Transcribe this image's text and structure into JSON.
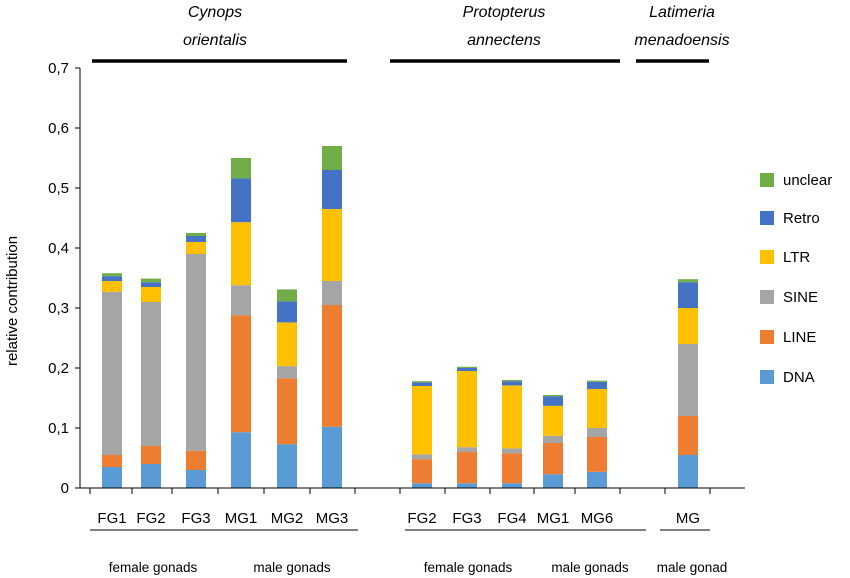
{
  "chart_data": {
    "type": "bar",
    "stacked": true,
    "ylabel": "relative contribution",
    "ylim": [
      0,
      0.7
    ],
    "yticks": [
      "0",
      "0,1",
      "0,2",
      "0,3",
      "0,4",
      "0,5",
      "0,6",
      "0,7"
    ],
    "grid": false,
    "legend_position": "right",
    "categories": [
      "FG1",
      "FG2",
      "FG3",
      "MG1",
      "MG2",
      "MG3",
      "FG2",
      "FG3",
      "FG4",
      "MG1",
      "MG6",
      "MG"
    ],
    "series": [
      {
        "name": "DNA",
        "color": "#5b9bd5",
        "values": [
          0.035,
          0.04,
          0.03,
          0.093,
          0.073,
          0.102,
          0.008,
          0.008,
          0.008,
          0.023,
          0.027,
          0.055
        ]
      },
      {
        "name": "LINE",
        "color": "#ed7d31",
        "values": [
          0.02,
          0.03,
          0.032,
          0.195,
          0.11,
          0.203,
          0.04,
          0.052,
          0.05,
          0.052,
          0.058,
          0.065
        ]
      },
      {
        "name": "SINE",
        "color": "#a5a5a5",
        "values": [
          0.272,
          0.24,
          0.328,
          0.05,
          0.02,
          0.04,
          0.008,
          0.008,
          0.008,
          0.012,
          0.015,
          0.12
        ]
      },
      {
        "name": "LTR",
        "color": "#ffc000",
        "values": [
          0.018,
          0.025,
          0.02,
          0.105,
          0.073,
          0.12,
          0.114,
          0.127,
          0.105,
          0.05,
          0.065,
          0.06
        ]
      },
      {
        "name": "Retro",
        "color": "#4472c4",
        "values": [
          0.008,
          0.008,
          0.01,
          0.073,
          0.035,
          0.065,
          0.006,
          0.005,
          0.007,
          0.016,
          0.012,
          0.043
        ]
      },
      {
        "name": "unclear",
        "color": "#70ad47",
        "values": [
          0.005,
          0.006,
          0.005,
          0.034,
          0.02,
          0.04,
          0.002,
          0.002,
          0.002,
          0.002,
          0.002,
          0.005
        ]
      }
    ],
    "species": [
      {
        "name_line1": "Cynops",
        "name_line2": "orientalis"
      },
      {
        "name_line1": "Protopterus",
        "name_line2": "annectens"
      },
      {
        "name_line1": "Latimeria",
        "name_line2": "menadoensis"
      }
    ],
    "groups": [
      "female gonads",
      "male gonads",
      "female gonads",
      "male gonads",
      "male gonad"
    ]
  }
}
